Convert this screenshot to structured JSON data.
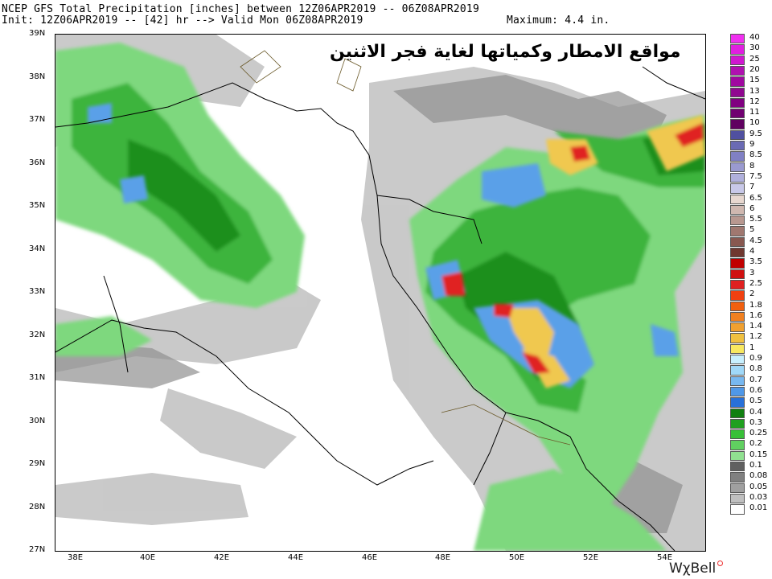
{
  "header": {
    "line1": "NCEP GFS Total Precipitation [inches] between 12Z06APR2019 -- 06Z08APR2019",
    "line2_left": "Init: 12Z06APR2019 -- [42] hr --> Valid Mon 06Z08APR2019",
    "maximum": "Maximum: 4.4 in."
  },
  "overlay_title": "مواقع الامطار وكمياتها لغاية فجر الاثنين",
  "lat_labels": [
    "39N",
    "38N",
    "37N",
    "36N",
    "35N",
    "34N",
    "33N",
    "32N",
    "31N",
    "30N",
    "29N",
    "28N",
    "27N"
  ],
  "lon_labels": [
    "38E",
    "40E",
    "42E",
    "44E",
    "46E",
    "48E",
    "50E",
    "52E",
    "54E"
  ],
  "legend": {
    "labels": [
      "40",
      "30",
      "25",
      "20",
      "15",
      "13",
      "12",
      "11",
      "10",
      "9.5",
      "9",
      "8.5",
      "8",
      "7.5",
      "7",
      "6.5",
      "6",
      "5.5",
      "5",
      "4.5",
      "4",
      "3.5",
      "3",
      "2.5",
      "2",
      "1.8",
      "1.6",
      "1.4",
      "1.2",
      "1",
      "0.9",
      "0.8",
      "0.7",
      "0.6",
      "0.5",
      "0.4",
      "0.3",
      "0.25",
      "0.2",
      "0.15",
      "0.1",
      "0.08",
      "0.05",
      "0.03",
      "0.01"
    ],
    "colors": [
      "#f030f0",
      "#e020e0",
      "#d018d0",
      "#b010b0",
      "#a008a0",
      "#900890",
      "#800080",
      "#700070",
      "#600060",
      "#5050a0",
      "#6a6ab4",
      "#8080c4",
      "#9a9ad0",
      "#b0b0dc",
      "#c8c8e8",
      "#e8d8d0",
      "#d0b8b0",
      "#b89890",
      "#a07870",
      "#885850",
      "#703830",
      "#c00000",
      "#d01010",
      "#e02020",
      "#f04010",
      "#f06010",
      "#f08020",
      "#f0a030",
      "#f0c040",
      "#f8e860",
      "#c8f0ff",
      "#a0d8f8",
      "#78b8f0",
      "#5098e8",
      "#2870d8",
      "#108010",
      "#20a020",
      "#38c038",
      "#60d060",
      "#90e090",
      "#606060",
      "#808080",
      "#a0a0a0",
      "#c0c0c0",
      "#ffffff"
    ]
  },
  "brand": "WχBell"
}
